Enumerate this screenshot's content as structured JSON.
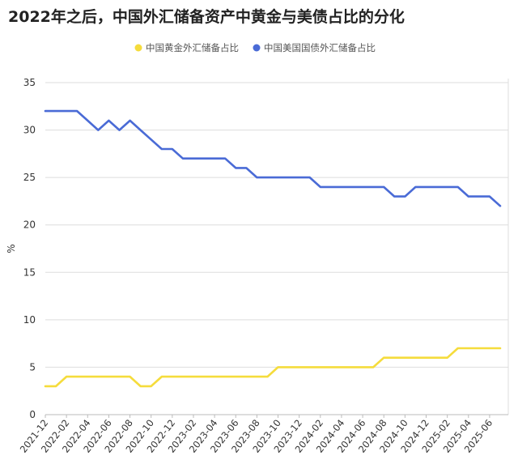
{
  "chart_data": {
    "type": "line",
    "title": "2022年之后，中国外汇储备资产中黄金与美债占比的分化",
    "xlabel": "",
    "ylabel": "%",
    "ylim": [
      0,
      35
    ],
    "yticks": [
      0,
      5,
      10,
      15,
      20,
      25,
      30,
      35
    ],
    "grid": true,
    "legend_position": "top-center",
    "x_tick_labels": [
      "2021-12",
      "2022-02",
      "2022-04",
      "2022-06",
      "2022-08",
      "2022-10",
      "2022-12",
      "2023-02",
      "2023-04",
      "2023-06",
      "2023-08",
      "2023-10",
      "2023-12",
      "2024-02",
      "2024-04",
      "2024-06",
      "2024-08",
      "2024-10",
      "2024-12",
      "2025-02",
      "2025-04",
      "2025-06"
    ],
    "x": [
      "2021-12",
      "2022-01",
      "2022-02",
      "2022-03",
      "2022-04",
      "2022-05",
      "2022-06",
      "2022-07",
      "2022-08",
      "2022-09",
      "2022-10",
      "2022-11",
      "2022-12",
      "2023-01",
      "2023-02",
      "2023-03",
      "2023-04",
      "2023-05",
      "2023-06",
      "2023-07",
      "2023-08",
      "2023-09",
      "2023-10",
      "2023-11",
      "2023-12",
      "2024-01",
      "2024-02",
      "2024-03",
      "2024-04",
      "2024-05",
      "2024-06",
      "2024-07",
      "2024-08",
      "2024-09",
      "2024-10",
      "2024-11",
      "2024-12",
      "2025-01",
      "2025-02",
      "2025-03",
      "2025-04",
      "2025-05",
      "2025-06",
      "2025-07"
    ],
    "series": [
      {
        "name": "中国黄金外汇储备占比",
        "color": "#f5dc3c",
        "values": [
          3,
          3,
          4,
          4,
          4,
          4,
          4,
          4,
          4,
          3,
          3,
          4,
          4,
          4,
          4,
          4,
          4,
          4,
          4,
          4,
          4,
          4,
          5,
          5,
          5,
          5,
          5,
          5,
          5,
          5,
          5,
          5,
          6,
          6,
          6,
          6,
          6,
          6,
          6,
          7,
          7,
          7,
          7,
          7
        ]
      },
      {
        "name": "中国美国国债外汇储备占比",
        "color": "#4a6bd6",
        "values": [
          32,
          32,
          32,
          32,
          31,
          30,
          31,
          30,
          31,
          30,
          29,
          28,
          28,
          27,
          27,
          27,
          27,
          27,
          26,
          26,
          25,
          25,
          25,
          25,
          25,
          25,
          24,
          24,
          24,
          24,
          24,
          24,
          24,
          23,
          23,
          24,
          24,
          24,
          24,
          24,
          23,
          23,
          23,
          22
        ]
      }
    ]
  }
}
